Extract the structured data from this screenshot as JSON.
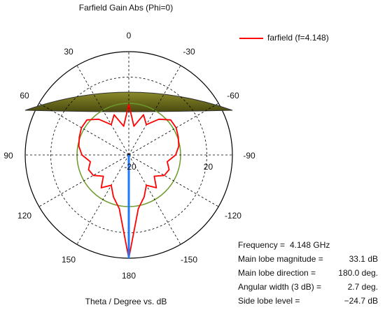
{
  "chart_data": {
    "type": "polar",
    "title": "Farfield Gain Abs (Phi=0)",
    "axis_label": "Theta / Degree vs. dB",
    "rlim": [
      -20,
      33.1
    ],
    "rticks": [
      -20,
      20
    ],
    "thetaticks": [
      0,
      30,
      60,
      90,
      120,
      150,
      180,
      -150,
      -120,
      -90,
      -60,
      -30
    ],
    "series": [
      {
        "name": "farfield (f=4.148)",
        "color": "#ff0000",
        "theta": [
          -180,
          -170,
          -160,
          -150,
          -140,
          -130,
          -120,
          -110,
          -100,
          -90,
          -80,
          -70,
          -60,
          -50,
          -40,
          -30,
          -20,
          -10,
          0,
          10,
          20,
          30,
          40,
          50,
          60,
          70,
          80,
          90,
          100,
          110,
          120,
          130,
          140,
          150,
          160,
          170,
          180
        ],
        "values": [
          33.1,
          8,
          3,
          -2,
          2,
          -3,
          1,
          2,
          0,
          4,
          6,
          7,
          8,
          8,
          4,
          -2,
          2,
          -5,
          6,
          -5,
          2,
          -2,
          4,
          8,
          8,
          7,
          6,
          4,
          0,
          2,
          1,
          -3,
          2,
          -2,
          3,
          8,
          33.1
        ]
      }
    ],
    "info": [
      {
        "label": "Frequency =",
        "value": 4.148,
        "value_label": "4.148 GHz"
      },
      {
        "label": "Main lobe magnitude =",
        "value": 33.1,
        "value_label": "33.1 dB"
      },
      {
        "label": "Main lobe direction =",
        "value": 180,
        "value_label": "180.0 deg."
      },
      {
        "label": "Angular width (3 dB) =",
        "value": 2.7,
        "value_label": "2.7 deg."
      },
      {
        "label": "Side lobe level =",
        "value": -24.7,
        "value_label": "−24.7 dB"
      }
    ]
  }
}
